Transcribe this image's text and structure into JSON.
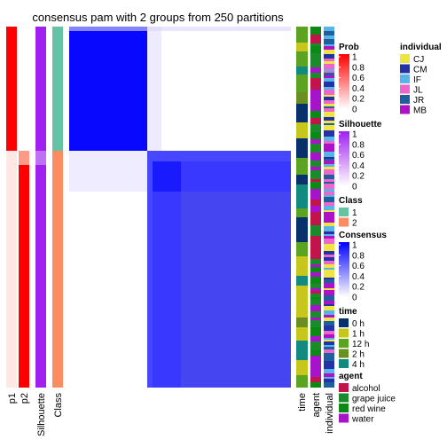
{
  "chart_data": {
    "type": "heatmap",
    "title": "consensus pam with 2 groups from 250 partitions",
    "row_annotations": [
      "p1",
      "p2",
      "Silhouette",
      "Class"
    ],
    "column_annotations": [
      "time",
      "agent",
      "individual"
    ],
    "matrix": {
      "name": "Consensus",
      "range": [
        0,
        1
      ],
      "blocks": [
        {
          "class": "1",
          "mean_consensus": 0.97
        },
        {
          "class": "2",
          "mean_consensus": 0.78
        }
      ]
    },
    "legends": [
      {
        "title": "Prob",
        "type": "continuous",
        "ticks": [
          "1",
          "0.8",
          "0.6",
          "0.4",
          "0.2",
          "0"
        ],
        "colors": [
          "#ff0000",
          "#ffffff"
        ]
      },
      {
        "title": "Silhouette",
        "type": "continuous",
        "ticks": [
          "1",
          "0.8",
          "0.6",
          "0.4",
          "0.2",
          "0"
        ],
        "colors": [
          "#a020f0",
          "#ffffff"
        ]
      },
      {
        "title": "Class",
        "type": "discrete",
        "items": [
          {
            "label": "1",
            "color": "#66c2a5"
          },
          {
            "label": "2",
            "color": "#fc8d62"
          }
        ]
      },
      {
        "title": "Consensus",
        "type": "continuous",
        "ticks": [
          "1",
          "0.8",
          "0.6",
          "0.4",
          "0.2",
          "0"
        ],
        "colors": [
          "#0000ff",
          "#ffffff"
        ]
      },
      {
        "title": "time",
        "type": "discrete",
        "items": [
          {
            "label": "0 h",
            "color": "#08306b"
          },
          {
            "label": "1 h",
            "color": "#c6c61c"
          },
          {
            "label": "12 h",
            "color": "#5ba321"
          },
          {
            "label": "2 h",
            "color": "#6b8e23"
          },
          {
            "label": "4 h",
            "color": "#138a80"
          }
        ]
      },
      {
        "title": "agent",
        "type": "discrete",
        "items": [
          {
            "label": "alcohol",
            "color": "#c0144b"
          },
          {
            "label": "grape juice",
            "color": "#1a8a2a"
          },
          {
            "label": "red wine",
            "color": "#0a8a14"
          },
          {
            "label": "water",
            "color": "#a514c8"
          }
        ]
      },
      {
        "title": "individual",
        "type": "discrete",
        "items": [
          {
            "label": "CJ",
            "color": "#f0e442"
          },
          {
            "label": "CM",
            "color": "#2233aa"
          },
          {
            "label": "IF",
            "color": "#56b4e9"
          },
          {
            "label": "JL",
            "color": "#ee66cc"
          },
          {
            "label": "JR",
            "color": "#1f5fa0"
          },
          {
            "label": "MB",
            "color": "#b010c8"
          }
        ]
      }
    ]
  }
}
